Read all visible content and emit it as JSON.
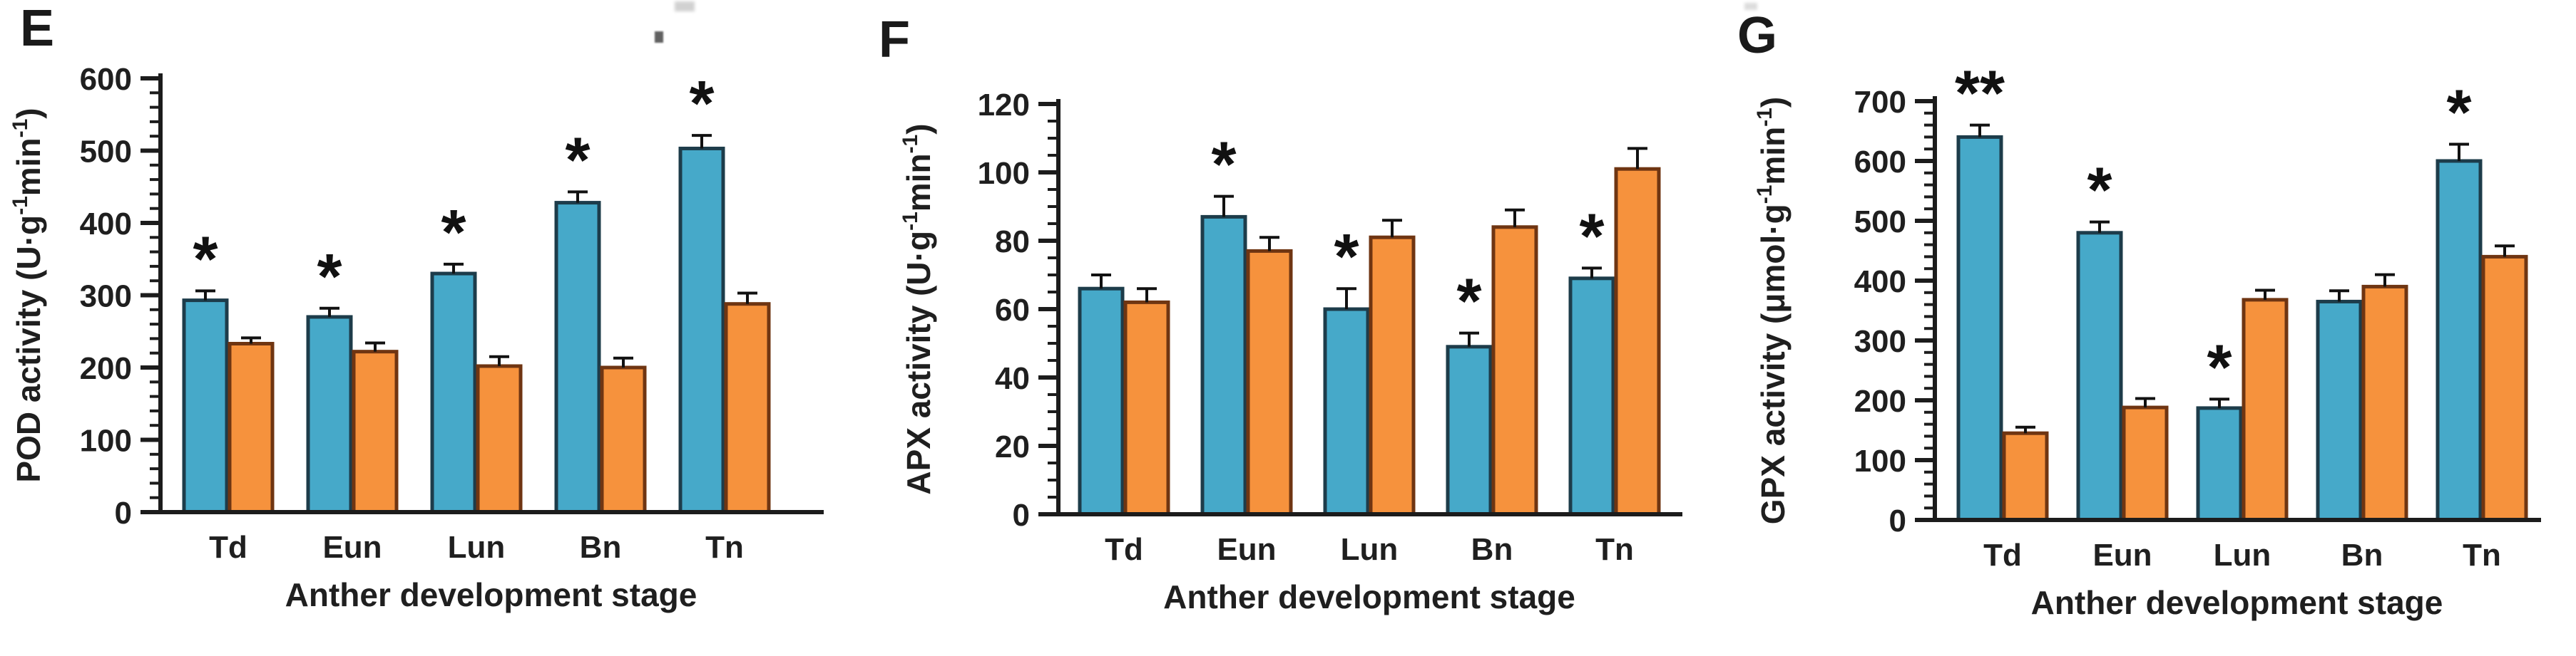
{
  "figure": {
    "xlabel": "Anther development stage",
    "categories": [
      "Td",
      "Eun",
      "Lun",
      "Bn",
      "Tn"
    ],
    "colors": {
      "blue_series": "#46a9c9",
      "orange_series": "#f6923d",
      "axis": "#1c1c1c"
    }
  },
  "chart_data": [
    {
      "type": "bar",
      "panel_label": "E",
      "title": "",
      "ylabel": "POD activity (U·g⁻¹min⁻¹)",
      "ylabel_parts": {
        "pre": "POD activity (U·g",
        "sup1": "-1",
        "mid": "min",
        "sup2": "-1",
        "post": ")"
      },
      "xlabel": "Anther development stage",
      "categories": [
        "Td",
        "Eun",
        "Lun",
        "Bn",
        "Tn"
      ],
      "ylim": [
        0,
        600
      ],
      "yticks": [
        0,
        100,
        200,
        300,
        400,
        500,
        600
      ],
      "ytick_step": 100,
      "minor_tick_step": 20,
      "grid": false,
      "legend": "none",
      "series": [
        {
          "name": "blue",
          "color": "#46a9c9",
          "edge": "#1d3c4a",
          "values": [
            293,
            270,
            330,
            428,
            503
          ],
          "errors": [
            13,
            12,
            13,
            15,
            18
          ],
          "significance": [
            "*",
            "*",
            "*",
            "*",
            "*"
          ]
        },
        {
          "name": "orange",
          "color": "#f6923d",
          "edge": "#6f3512",
          "values": [
            233,
            222,
            202,
            200,
            288
          ],
          "errors": [
            8,
            12,
            13,
            13,
            15
          ],
          "significance": [
            "",
            "",
            "",
            "",
            ""
          ]
        }
      ]
    },
    {
      "type": "bar",
      "panel_label": "F",
      "title": "",
      "ylabel": "APX activity (U·g⁻¹min⁻¹)",
      "ylabel_parts": {
        "pre": "APX activity (U·g",
        "sup1": "-1",
        "mid": "min",
        "sup2": "-1",
        "post": ")"
      },
      "xlabel": "Anther development stage",
      "categories": [
        "Td",
        "Eun",
        "Lun",
        "Bn",
        "Tn"
      ],
      "ylim": [
        0,
        120
      ],
      "yticks": [
        0,
        20,
        40,
        60,
        80,
        100,
        120
      ],
      "ytick_step": 20,
      "minor_tick_step": 5,
      "grid": false,
      "legend": "none",
      "series": [
        {
          "name": "blue",
          "color": "#46a9c9",
          "edge": "#1d3c4a",
          "values": [
            66,
            87,
            60,
            49,
            69
          ],
          "errors": [
            4,
            6,
            6,
            4,
            3
          ],
          "significance": [
            "",
            "*",
            "*",
            "*",
            "*"
          ]
        },
        {
          "name": "orange",
          "color": "#f6923d",
          "edge": "#6f3512",
          "values": [
            62,
            77,
            81,
            84,
            101
          ],
          "errors": [
            4,
            4,
            5,
            5,
            6
          ],
          "significance": [
            "",
            "",
            "",
            "",
            ""
          ]
        }
      ]
    },
    {
      "type": "bar",
      "panel_label": "G",
      "title": "",
      "ylabel": "GPX activity (μmol·g⁻¹min⁻¹)",
      "ylabel_parts": {
        "pre": "GPX activity (μmol·g",
        "sup1": "-1",
        "mid": "min",
        "sup2": "-1",
        "post": ")"
      },
      "xlabel": "Anther development stage",
      "categories": [
        "Td",
        "Eun",
        "Lun",
        "Bn",
        "Tn"
      ],
      "ylim": [
        0,
        700
      ],
      "yticks": [
        0,
        100,
        200,
        300,
        400,
        500,
        600,
        700
      ],
      "ytick_step": 100,
      "minor_tick_step": 20,
      "grid": false,
      "legend": "none",
      "series": [
        {
          "name": "blue",
          "color": "#46a9c9",
          "edge": "#1d3c4a",
          "values": [
            640,
            480,
            187,
            365,
            600
          ],
          "errors": [
            20,
            18,
            15,
            18,
            28
          ],
          "significance": [
            "**",
            "*",
            "*",
            "",
            "*"
          ]
        },
        {
          "name": "orange",
          "color": "#f6923d",
          "edge": "#6f3512",
          "values": [
            145,
            188,
            368,
            390,
            440
          ],
          "errors": [
            10,
            15,
            16,
            20,
            18
          ],
          "significance": [
            "",
            "",
            "",
            "",
            ""
          ]
        }
      ]
    }
  ]
}
